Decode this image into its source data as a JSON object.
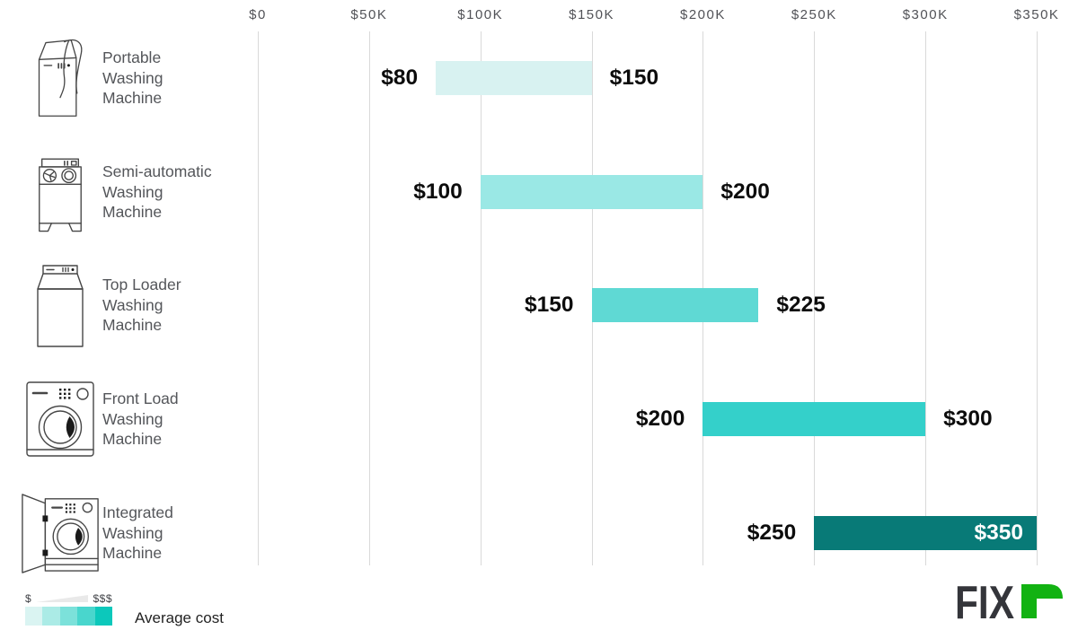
{
  "chart_data": {
    "type": "bar",
    "variant": "horizontal-range-bars",
    "axis": {
      "ticks": [
        "$0",
        "$50K",
        "$100K",
        "$150K",
        "$200K",
        "$250K",
        "$300K",
        "$350K"
      ],
      "tick_values": [
        0,
        50,
        100,
        150,
        200,
        250,
        300,
        350
      ],
      "max": 350,
      "gridlines": true
    },
    "rows": [
      {
        "label": "Portable\nWashing\nMachine",
        "icon": "portable-washing-machine-icon",
        "min": 80,
        "max": 150,
        "min_label": "$80",
        "max_label": "$150",
        "color": "#d8f2f1",
        "max_label_inside": false
      },
      {
        "label": "Semi-automatic\nWashing\nMachine",
        "icon": "semi-automatic-washing-machine-icon",
        "min": 100,
        "max": 200,
        "min_label": "$100",
        "max_label": "$200",
        "color": "#9ae8e5",
        "max_label_inside": false
      },
      {
        "label": "Top Loader\nWashing\nMachine",
        "icon": "top-loader-washing-machine-icon",
        "min": 150,
        "max": 225,
        "min_label": "$150",
        "max_label": "$225",
        "color": "#5fd9d4",
        "max_label_inside": false
      },
      {
        "label": "Front Load\nWashing\nMachine",
        "icon": "front-load-washing-machine-icon",
        "min": 200,
        "max": 300,
        "min_label": "$200",
        "max_label": "$300",
        "color": "#34d0ca",
        "max_label_inside": false
      },
      {
        "label": "Integrated\nWashing\nMachine",
        "icon": "integrated-washing-machine-icon",
        "min": 250,
        "max": 350,
        "min_label": "$250",
        "max_label": "$350",
        "color": "#087a77",
        "max_label_inside": true
      }
    ],
    "legend": {
      "low_label": "$",
      "high_label": "$$$",
      "caption": "Average cost",
      "gradient_colors": [
        "#daf4f2",
        "#abebe6",
        "#7ce1da",
        "#49d6cd",
        "#0cc8bb"
      ]
    },
    "colors": {
      "gridline": "#d9d9d9",
      "axis_text": "#515257",
      "category_text": "#54565a",
      "value_text": "#0c0c0c",
      "value_text_inside": "#ffffff"
    }
  },
  "branding": {
    "logo_text": "FIX",
    "logo_accent_glyph": "r",
    "logo_text_color": "#34353a",
    "logo_accent_color": "#12b212"
  }
}
